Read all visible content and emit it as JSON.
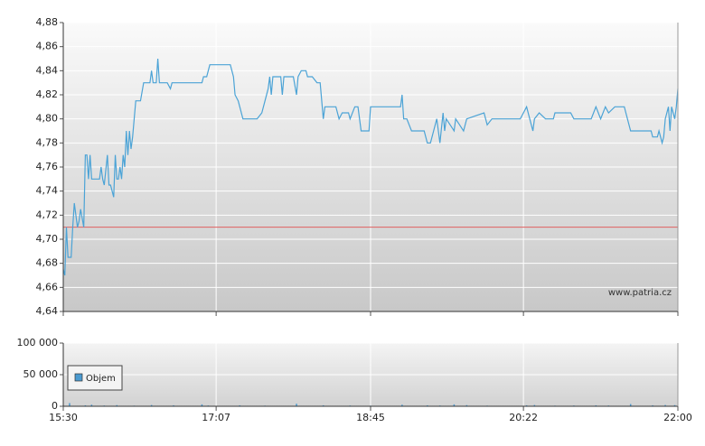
{
  "chart_data": [
    {
      "type": "line",
      "watermark": "www.patria.cz",
      "xlim": [
        "15:30",
        "22:00"
      ],
      "ylim": [
        4.64,
        4.88
      ],
      "yticks": [
        {
          "value": 4.64,
          "label": "4,64"
        },
        {
          "value": 4.66,
          "label": "4,66"
        },
        {
          "value": 4.68,
          "label": "4,68"
        },
        {
          "value": 4.7,
          "label": "4,70"
        },
        {
          "value": 4.72,
          "label": "4,72"
        },
        {
          "value": 4.74,
          "label": "4,74"
        },
        {
          "value": 4.76,
          "label": "4,76"
        },
        {
          "value": 4.78,
          "label": "4,78"
        },
        {
          "value": 4.8,
          "label": "4,80"
        },
        {
          "value": 4.82,
          "label": "4,82"
        },
        {
          "value": 4.84,
          "label": "4,84"
        },
        {
          "value": 4.86,
          "label": "4,86"
        },
        {
          "value": 4.88,
          "label": "4,88"
        }
      ],
      "grid": true,
      "color": "#4ba3d6",
      "reference_line": 4.71,
      "reference_color": "#e06060",
      "x": [
        "15:30",
        "15:31",
        "15:32",
        "15:33",
        "15:35",
        "15:36",
        "15:37",
        "15:39",
        "15:40",
        "15:41",
        "15:43",
        "15:44",
        "15:45",
        "15:46",
        "15:47",
        "15:48",
        "15:53",
        "15:54",
        "15:55",
        "15:56",
        "15:58",
        "15:59",
        "16:00",
        "16:02",
        "16:03",
        "16:04",
        "16:05",
        "16:06",
        "16:07",
        "16:08",
        "16:09",
        "16:10",
        "16:11",
        "16:12",
        "16:13",
        "16:14",
        "16:15",
        "16:16",
        "16:19",
        "16:21",
        "16:25",
        "16:26",
        "16:27",
        "16:29",
        "16:30",
        "16:31",
        "16:36",
        "16:38",
        "16:39",
        "16:58",
        "16:59",
        "17:01",
        "17:02",
        "17:03",
        "17:16",
        "17:18",
        "17:19",
        "17:21",
        "17:22",
        "17:24",
        "17:33",
        "17:36",
        "17:38",
        "17:40",
        "17:41",
        "17:42",
        "17:43",
        "17:48",
        "17:49",
        "17:50",
        "17:56",
        "17:58",
        "17:59",
        "18:01",
        "18:04",
        "18:05",
        "18:08",
        "18:11",
        "18:13",
        "18:15",
        "18:16",
        "18:23",
        "18:25",
        "18:27",
        "18:31",
        "18:32",
        "18:35",
        "18:37",
        "18:39",
        "18:44",
        "18:45",
        "19:04",
        "19:05",
        "19:06",
        "19:08",
        "19:11",
        "19:19",
        "19:21",
        "19:23",
        "19:25",
        "19:27",
        "19:29",
        "19:31",
        "19:32",
        "19:33",
        "19:38",
        "19:39",
        "19:44",
        "19:46",
        "19:57",
        "19:59",
        "20:02",
        "20:20",
        "20:22",
        "20:24",
        "20:26",
        "20:28",
        "20:29",
        "20:32",
        "20:36",
        "20:41",
        "20:42",
        "20:52",
        "20:54",
        "21:05",
        "21:08",
        "21:11",
        "21:14",
        "21:16",
        "21:20",
        "21:26",
        "21:27",
        "21:30",
        "21:43",
        "21:44",
        "21:47",
        "21:48",
        "21:50",
        "21:51",
        "21:52",
        "21:54",
        "21:55",
        "21:56",
        "21:58",
        "21:59",
        "22:00"
      ],
      "values": [
        4.675,
        4.67,
        4.71,
        4.685,
        4.685,
        4.71,
        4.73,
        4.71,
        4.715,
        4.725,
        4.71,
        4.77,
        4.77,
        4.75,
        4.77,
        4.75,
        4.75,
        4.76,
        4.75,
        4.745,
        4.77,
        4.745,
        4.745,
        4.735,
        4.77,
        4.75,
        4.75,
        4.76,
        4.75,
        4.77,
        4.76,
        4.79,
        4.77,
        4.79,
        4.775,
        4.785,
        4.8,
        4.815,
        4.815,
        4.83,
        4.83,
        4.84,
        4.83,
        4.83,
        4.85,
        4.83,
        4.83,
        4.825,
        4.83,
        4.83,
        4.835,
        4.835,
        4.84,
        4.845,
        4.845,
        4.835,
        4.82,
        4.815,
        4.81,
        4.8,
        4.8,
        4.805,
        4.815,
        4.825,
        4.835,
        4.82,
        4.835,
        4.835,
        4.82,
        4.835,
        4.835,
        4.82,
        4.835,
        4.84,
        4.84,
        4.835,
        4.835,
        4.83,
        4.83,
        4.8,
        4.81,
        4.81,
        4.8,
        4.805,
        4.805,
        4.8,
        4.81,
        4.81,
        4.79,
        4.79,
        4.81,
        4.81,
        4.82,
        4.8,
        4.8,
        4.79,
        4.79,
        4.78,
        4.78,
        4.79,
        4.8,
        4.78,
        4.805,
        4.79,
        4.8,
        4.79,
        4.8,
        4.79,
        4.8,
        4.805,
        4.795,
        4.8,
        4.8,
        4.805,
        4.81,
        4.8,
        4.79,
        4.8,
        4.805,
        4.8,
        4.8,
        4.805,
        4.805,
        4.8,
        4.8,
        4.81,
        4.8,
        4.81,
        4.805,
        4.81,
        4.81,
        4.805,
        4.79,
        4.79,
        4.785,
        4.785,
        4.79,
        4.78,
        4.785,
        4.8,
        4.81,
        4.79,
        4.81,
        4.8,
        4.81,
        4.825
      ]
    },
    {
      "type": "bar",
      "xlim": [
        "15:30",
        "22:00"
      ],
      "xticks": [
        "15:30",
        "17:07",
        "18:45",
        "20:22",
        "22:00"
      ],
      "ylim": [
        0,
        100000
      ],
      "yticks": [
        0,
        {
          "value": 50000,
          "label": "50 000"
        },
        {
          "value": 100000,
          "label": "100 000"
        }
      ],
      "grid": true,
      "legend": "upper left",
      "x": [
        "15:34",
        "15:44",
        "15:48",
        "15:56",
        "16:04",
        "16:15",
        "16:26",
        "16:40",
        "16:58",
        "17:02",
        "17:22",
        "17:38",
        "17:58",
        "18:15",
        "18:32",
        "18:45",
        "19:05",
        "19:21",
        "19:29",
        "19:38",
        "19:46",
        "19:59",
        "20:24",
        "20:29",
        "20:42",
        "20:54",
        "21:08",
        "21:16",
        "21:30",
        "21:44",
        "21:52",
        "21:58"
      ],
      "series": [
        {
          "name": "Objem",
          "color": "#4a9ad0",
          "values": [
            5000,
            1500,
            2500,
            1200,
            1800,
            1000,
            2000,
            1500,
            3000,
            1200,
            1500,
            1000,
            4000,
            1500,
            1200,
            1000,
            2500,
            1500,
            1200,
            3000,
            1800,
            1000,
            1500,
            2000,
            1000,
            1200,
            1500,
            1200,
            3500,
            1500,
            2000,
            1800
          ]
        }
      ]
    }
  ]
}
